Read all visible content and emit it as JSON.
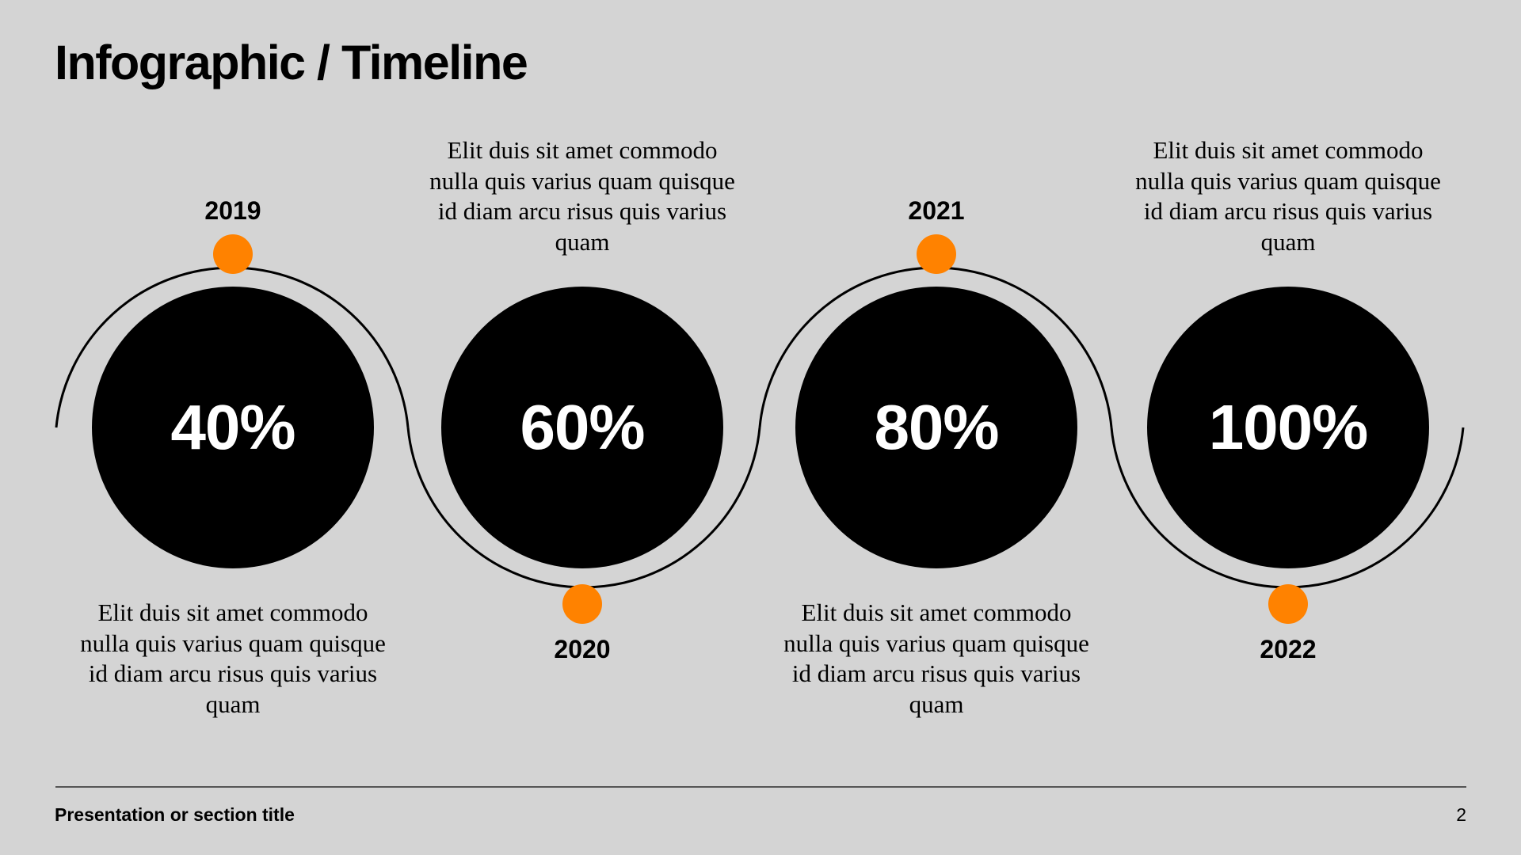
{
  "slide": {
    "title": "Infographic / Timeline",
    "footer_title": "Presentation or section title",
    "page_number": "2"
  },
  "colors": {
    "background": "#d4d4d4",
    "circle": "#000000",
    "accent": "#ff8200",
    "text": "#000000",
    "percent_text": "#ffffff"
  },
  "milestones": [
    {
      "year": "2019",
      "percent": "40%",
      "description": "Elit duis sit amet commodo nulla quis varius quam quisque id diam arcu risus quis varius quam"
    },
    {
      "year": "2020",
      "percent": "60%",
      "description": "Elit duis sit amet commodo nulla quis varius quam quisque id diam arcu risus quis varius quam"
    },
    {
      "year": "2021",
      "percent": "80%",
      "description": "Elit duis sit amet commodo nulla quis varius quam quisque id diam arcu risus quis varius quam"
    },
    {
      "year": "2022",
      "percent": "100%",
      "description": "Elit duis sit amet commodo nulla quis varius quam quisque id diam arcu risus quis varius quam"
    }
  ]
}
